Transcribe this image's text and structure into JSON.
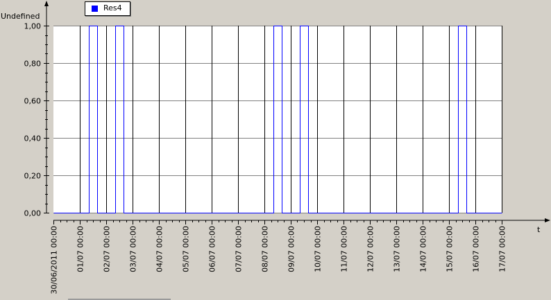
{
  "chart_data": {
    "type": "line",
    "step": true,
    "title": "",
    "ylabel": "Undefined",
    "xlabel": "t",
    "ylim": [
      0,
      1
    ],
    "xlim": [
      "30/06/2011 00:00",
      "17/07/2011 00:00"
    ],
    "yticks": [
      "0,00",
      "0,20",
      "0,40",
      "0,60",
      "0,80",
      "1,00"
    ],
    "ytick_values": [
      0,
      0.2,
      0.4,
      0.6,
      0.8,
      1.0
    ],
    "xticks": [
      "30/06/2011 00:00",
      "01/07 00:00",
      "02/07 00:00",
      "03/07 00:00",
      "04/07 00:00",
      "05/07 00:00",
      "06/07 00:00",
      "07/07 00:00",
      "08/07 00:00",
      "09/07 00:00",
      "10/07 00:00",
      "11/07 00:00",
      "12/07 00:00",
      "13/07 00:00",
      "14/07 00:00",
      "15/07 00:00",
      "16/07 00:00",
      "17/07 00:00"
    ],
    "grid": true,
    "legend_position": "top-left",
    "series": [
      {
        "name": "Res4",
        "color": "#0000ff",
        "x": [
          "30/06/2011 00:00",
          "01/07/2011 08:00",
          "01/07/2011 08:00",
          "01/07/2011 16:00",
          "01/07/2011 16:00",
          "02/07/2011 08:00",
          "02/07/2011 08:00",
          "02/07/2011 16:00",
          "02/07/2011 16:00",
          "08/07/2011 08:00",
          "08/07/2011 08:00",
          "08/07/2011 16:00",
          "08/07/2011 16:00",
          "09/07/2011 08:00",
          "09/07/2011 08:00",
          "09/07/2011 16:00",
          "09/07/2011 16:00",
          "15/07/2011 08:00",
          "15/07/2011 08:00",
          "15/07/2011 16:00",
          "15/07/2011 16:00",
          "17/07/2011 00:00"
        ],
        "y": [
          0,
          0,
          1,
          1,
          0,
          0,
          1,
          1,
          0,
          0,
          1,
          1,
          0,
          0,
          1,
          1,
          0,
          0,
          1,
          1,
          0,
          0
        ]
      }
    ]
  }
}
